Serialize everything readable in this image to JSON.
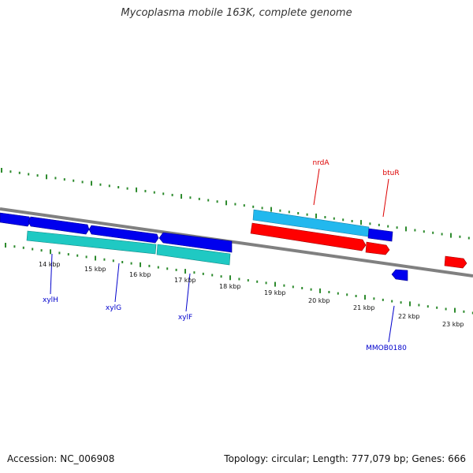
{
  "title": "Mycoplasma mobile 163K, complete genome",
  "footer": {
    "accession": "Accession: NC_006908",
    "summary": "Topology: circular; Length: 777,079 bp; Genes: 666"
  },
  "colors": {
    "backbone": "#808080",
    "tick_green": "#2e8b2e",
    "gene_blue": "#0000ee",
    "gene_red": "#ff0000",
    "gene_cyan": "#1fc9c3",
    "gene_lightblue": "#22b8ee",
    "label_blue": "#0000cc",
    "label_red": "#dd0000"
  },
  "scale_labels": [
    "14 kbp",
    "15 kbp",
    "16 kbp",
    "17 kbp",
    "18 kbp",
    "19 kbp",
    "20 kbp",
    "21 kbp",
    "22 kbp",
    "23 kbp"
  ],
  "gene_labels": [
    {
      "text": "xylH",
      "color": "label_blue"
    },
    {
      "text": "xylG",
      "color": "label_blue"
    },
    {
      "text": "xylF",
      "color": "label_blue"
    },
    {
      "text": "MMOB0180",
      "color": "label_blue"
    },
    {
      "text": "nrdA",
      "color": "label_red"
    },
    {
      "text": "btuR",
      "color": "label_red"
    }
  ]
}
